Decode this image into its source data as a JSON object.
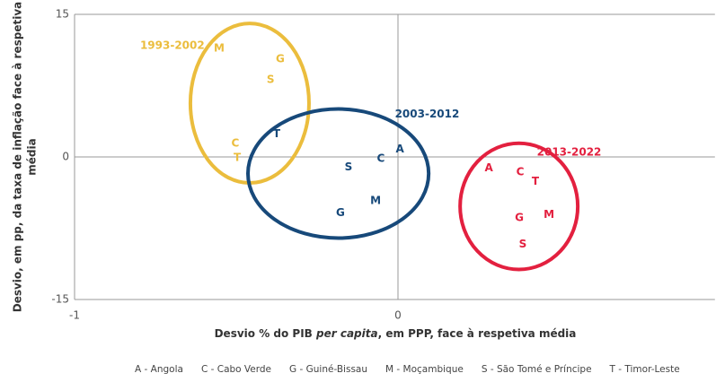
{
  "chart_data": {
    "type": "scatter",
    "xlabel": [
      "Desvio % do PIB ",
      "per capita",
      ", em PPP, face à respetiva média"
    ],
    "ylabel": [
      "Desvio, em pp, da taxa de inflação face à respetiva",
      "média"
    ],
    "xlim": [
      -1,
      0.98
    ],
    "xticks": [
      -1,
      0
    ],
    "ylim": [
      -15,
      15
    ],
    "yticks": [
      -15,
      0,
      15
    ],
    "series": [
      {
        "name": "1993-2002",
        "color": "#ebbd3d",
        "labels": [
          "M",
          "G",
          "S",
          "C",
          "T"
        ],
        "x": [
          -0.553,
          -0.364,
          -0.394,
          -0.503,
          -0.497
        ],
        "y": [
          11.4,
          10.3,
          8.1,
          1.4,
          -0.1
        ]
      },
      {
        "name": "2003-2012",
        "color": "#17497a",
        "labels": [
          "T",
          "A",
          "C",
          "S",
          "M",
          "G"
        ],
        "x": [
          -0.375,
          0.006,
          -0.053,
          -0.153,
          -0.069,
          -0.178
        ],
        "y": [
          2.4,
          0.8,
          -0.2,
          -1.1,
          -4.6,
          -5.9
        ]
      },
      {
        "name": "2013-2022",
        "color": "#e3203f",
        "labels": [
          "A",
          "C",
          "T",
          "G",
          "M",
          "S"
        ],
        "x": [
          0.281,
          0.378,
          0.425,
          0.375,
          0.467,
          0.386
        ],
        "y": [
          -1.2,
          -1.6,
          -2.6,
          -6.4,
          -6.1,
          -9.2
        ]
      }
    ],
    "legend": [
      "A - Angola",
      "C - Cabo Verde",
      "G - Guiné-Bissau",
      "M - Moçambique",
      "S - São Tomé e Príncipe",
      "T - Timor-Leste"
    ]
  }
}
